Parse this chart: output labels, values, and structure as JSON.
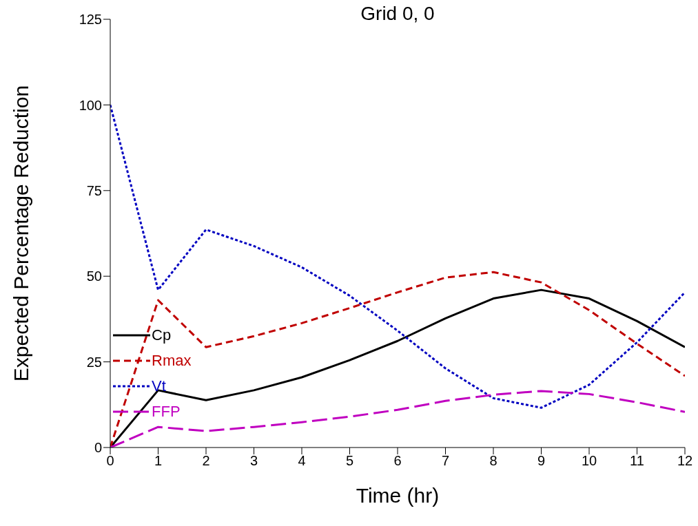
{
  "chart_data": {
    "type": "line",
    "title": "Grid 0, 0",
    "xlabel": "Time (hr)",
    "ylabel": "Expected Percentage Reduction",
    "x": [
      0,
      1,
      2,
      3,
      4,
      5,
      6,
      7,
      8,
      9,
      10,
      11,
      12
    ],
    "series": [
      {
        "name": "Cp",
        "color": "#000000",
        "line_style": "solid",
        "values": [
          0,
          16.7,
          13.8,
          16.7,
          20.5,
          25.5,
          31.1,
          37.7,
          43.5,
          46,
          43.5,
          36.9,
          29.3
        ]
      },
      {
        "name": "Rmax",
        "color": "#c00000",
        "line_style": "dashed",
        "values": [
          0,
          43,
          29.3,
          32.5,
          36.3,
          40.7,
          45.3,
          49.6,
          51.2,
          48.2,
          40.1,
          30.3,
          20.9
        ]
      },
      {
        "name": "Vt",
        "color": "#0000c0",
        "line_style": "dotted",
        "values": [
          100,
          46,
          63.6,
          58.8,
          52.6,
          44.3,
          34.1,
          23.1,
          14.4,
          11.6,
          18.3,
          30.7,
          45.3
        ]
      },
      {
        "name": "FFP",
        "color": "#c000c0",
        "line_style": "dashed",
        "values": [
          0,
          6,
          4.8,
          6,
          7.4,
          9,
          11,
          13.6,
          15.4,
          16.5,
          15.6,
          13.2,
          10.4
        ]
      }
    ],
    "xlim": [
      0,
      12
    ],
    "xticks": [
      0,
      1,
      2,
      3,
      4,
      5,
      6,
      7,
      8,
      9,
      10,
      11,
      12
    ],
    "ylim": [
      0,
      125
    ],
    "yticks": [
      0,
      25,
      50,
      75,
      100,
      125
    ],
    "grid": false,
    "legend": "left",
    "marker": "none"
  }
}
